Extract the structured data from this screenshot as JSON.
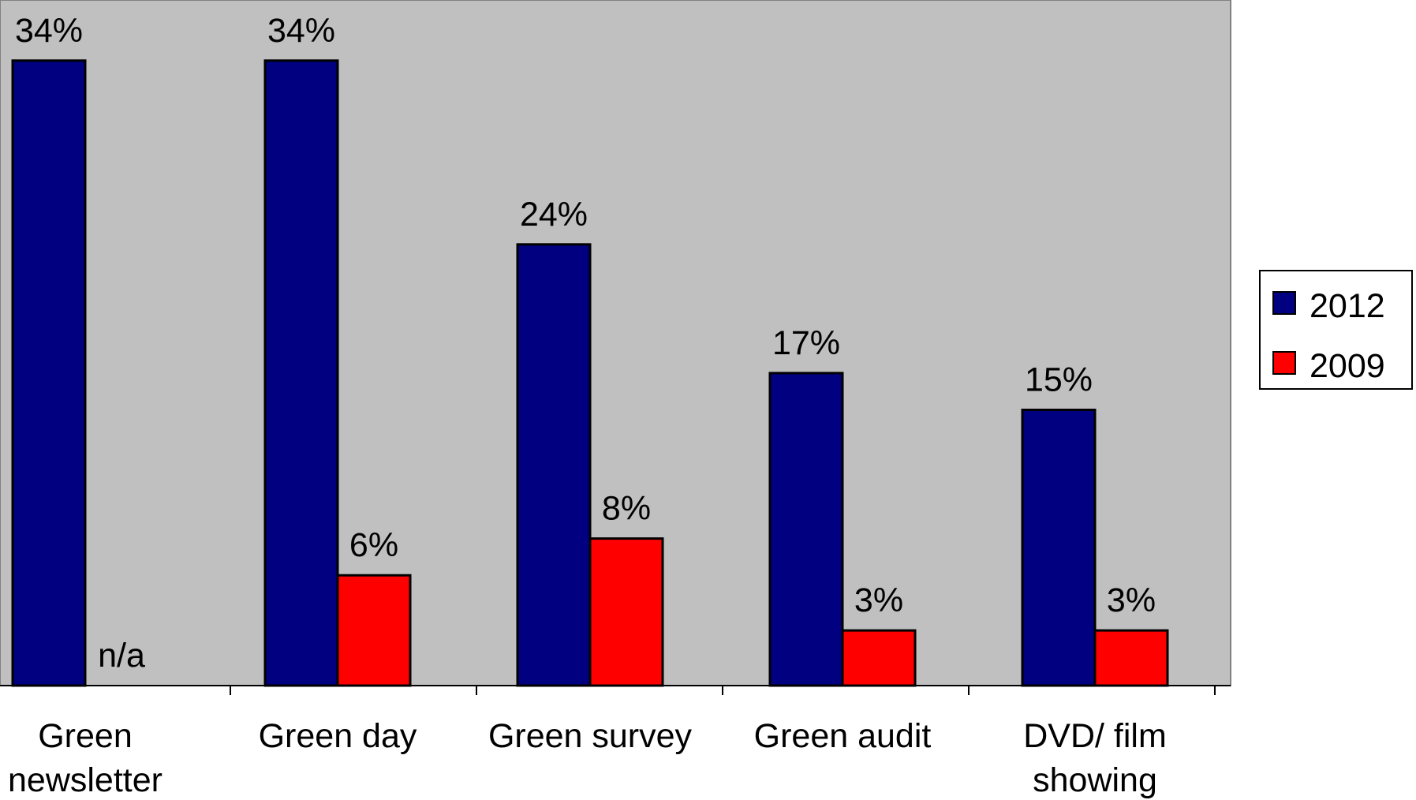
{
  "chart_data": {
    "type": "bar",
    "title": "",
    "xlabel": "",
    "ylabel": "",
    "ylim": [
      0,
      35
    ],
    "grid": false,
    "legend_position": "right",
    "categories": [
      [
        "Green",
        "newsletter"
      ],
      [
        "Green day"
      ],
      [
        "Green survey"
      ],
      [
        "Green audit"
      ],
      [
        "DVD/ film",
        "showing"
      ]
    ],
    "series": [
      {
        "name": "2012",
        "color": "#000080",
        "values": [
          34,
          34,
          24,
          17,
          15
        ],
        "labels": [
          "34%",
          "34%",
          "24%",
          "17%",
          "15%"
        ]
      },
      {
        "name": "2009",
        "color": "#ff0000",
        "values": [
          null,
          6,
          8,
          3,
          3
        ],
        "labels": [
          "n/a",
          "6%",
          "8%",
          "3%",
          "3%"
        ]
      }
    ],
    "colors": {
      "plot_background": "#c0c0c0"
    }
  }
}
